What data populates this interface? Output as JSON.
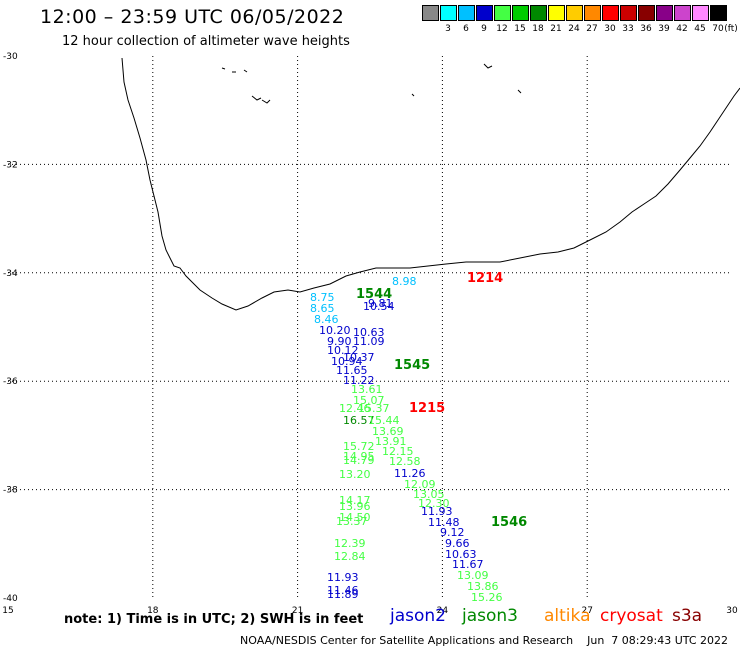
{
  "header": {
    "title": "12:00 – 23:59 UTC 06/05/2022",
    "subtitle": "12 hour collection of altimeter wave heights"
  },
  "color_scale": {
    "unit": "(ft)",
    "bins": [
      {
        "label": "",
        "color": "#888888"
      },
      {
        "label": "3",
        "color": "#00ffff"
      },
      {
        "label": "6",
        "color": "#00c0ff"
      },
      {
        "label": "9",
        "color": "#0000cc"
      },
      {
        "label": "12",
        "color": "#44ff44"
      },
      {
        "label": "15",
        "color": "#00cc00"
      },
      {
        "label": "18",
        "color": "#008800"
      },
      {
        "label": "21",
        "color": "#ffff00"
      },
      {
        "label": "24",
        "color": "#ffcc00"
      },
      {
        "label": "27",
        "color": "#ff8800"
      },
      {
        "label": "30",
        "color": "#ff0000"
      },
      {
        "label": "33",
        "color": "#cc0000"
      },
      {
        "label": "36",
        "color": "#880000"
      },
      {
        "label": "39",
        "color": "#880088"
      },
      {
        "label": "42",
        "color": "#cc44cc"
      },
      {
        "label": "45",
        "color": "#ff88ff"
      },
      {
        "label": "70",
        "color": "#000000"
      }
    ]
  },
  "axes": {
    "lat_ticks": [
      "-30",
      "-32",
      "-34",
      "-36",
      "-38",
      "-40"
    ],
    "lon_ticks": [
      "15",
      "18",
      "21",
      "24",
      "27",
      "30"
    ],
    "lon_range": [
      15,
      30
    ],
    "lat_range": [
      -40,
      -30
    ]
  },
  "pass_times": [
    {
      "label": "1214",
      "color": "#ff0000",
      "lon": 24.5,
      "lat": -34.1
    },
    {
      "label": "1544",
      "color": "#008800",
      "lon": 22.2,
      "lat": -34.4
    },
    {
      "label": "1545",
      "color": "#008800",
      "lon": 23.0,
      "lat": -35.7
    },
    {
      "label": "1215",
      "color": "#ff0000",
      "lon": 23.3,
      "lat": -36.5
    },
    {
      "label": "1546",
      "color": "#008800",
      "lon": 25.0,
      "lat": -38.6
    }
  ],
  "observations": [
    {
      "v": "8.98",
      "c": "#00c0ff",
      "lon": 22.95,
      "lat": -34.15
    },
    {
      "v": "8.75",
      "c": "#00c0ff",
      "lon": 21.25,
      "lat": -34.45
    },
    {
      "v": "8.65",
      "c": "#00c0ff",
      "lon": 21.25,
      "lat": -34.65
    },
    {
      "v": "8.46",
      "c": "#00c0ff",
      "lon": 21.35,
      "lat": -34.85
    },
    {
      "v": "9.81",
      "c": "#0000cc",
      "lon": 22.45,
      "lat": -34.55
    },
    {
      "v": "10.54",
      "c": "#0000cc",
      "lon": 22.35,
      "lat": -34.62
    },
    {
      "v": "10.20",
      "c": "#0000cc",
      "lon": 21.45,
      "lat": -35.05
    },
    {
      "v": "10.63",
      "c": "#0000cc",
      "lon": 22.15,
      "lat": -35.1
    },
    {
      "v": "11.09",
      "c": "#0000cc",
      "lon": 22.15,
      "lat": -35.25
    },
    {
      "v": "9.90",
      "c": "#0000cc",
      "lon": 21.6,
      "lat": -35.25
    },
    {
      "v": "10.12",
      "c": "#0000cc",
      "lon": 21.6,
      "lat": -35.42
    },
    {
      "v": "10.37",
      "c": "#0000cc",
      "lon": 21.95,
      "lat": -35.55
    },
    {
      "v": "10.94",
      "c": "#0000cc",
      "lon": 21.7,
      "lat": -35.62
    },
    {
      "v": "11.65",
      "c": "#0000cc",
      "lon": 21.8,
      "lat": -35.8
    },
    {
      "v": "11.22",
      "c": "#0000cc",
      "lon": 21.95,
      "lat": -35.98
    },
    {
      "v": "13.61",
      "c": "#44ff44",
      "lon": 22.1,
      "lat": -36.15
    },
    {
      "v": "15.07",
      "c": "#44ff44",
      "lon": 22.15,
      "lat": -36.35
    },
    {
      "v": "12.46",
      "c": "#44ff44",
      "lon": 21.85,
      "lat": -36.5
    },
    {
      "v": "15.37",
      "c": "#44ff44",
      "lon": 22.25,
      "lat": -36.5
    },
    {
      "v": "16.57",
      "c": "#008800",
      "lon": 21.95,
      "lat": -36.72
    },
    {
      "v": "15.44",
      "c": "#44ff44",
      "lon": 22.45,
      "lat": -36.72
    },
    {
      "v": "13.69",
      "c": "#44ff44",
      "lon": 22.55,
      "lat": -36.92
    },
    {
      "v": "13.91",
      "c": "#44ff44",
      "lon": 22.6,
      "lat": -37.1
    },
    {
      "v": "15.72",
      "c": "#44ff44",
      "lon": 21.95,
      "lat": -37.2
    },
    {
      "v": "12.15",
      "c": "#44ff44",
      "lon": 22.75,
      "lat": -37.28
    },
    {
      "v": "14.95",
      "c": "#44ff44",
      "lon": 21.95,
      "lat": -37.38
    },
    {
      "v": "14.79",
      "c": "#44ff44",
      "lon": 21.95,
      "lat": -37.45
    },
    {
      "v": "12.58",
      "c": "#44ff44",
      "lon": 22.9,
      "lat": -37.48
    },
    {
      "v": "11.26",
      "c": "#0000cc",
      "lon": 23.0,
      "lat": -37.7
    },
    {
      "v": "13.20",
      "c": "#44ff44",
      "lon": 21.85,
      "lat": -37.72
    },
    {
      "v": "12.09",
      "c": "#44ff44",
      "lon": 23.2,
      "lat": -37.9
    },
    {
      "v": "13.05",
      "c": "#44ff44",
      "lon": 23.4,
      "lat": -38.08
    },
    {
      "v": "14.17",
      "c": "#44ff44",
      "lon": 21.85,
      "lat": -38.2
    },
    {
      "v": "12.30",
      "c": "#44ff44",
      "lon": 23.5,
      "lat": -38.25
    },
    {
      "v": "13.96",
      "c": "#44ff44",
      "lon": 21.85,
      "lat": -38.3
    },
    {
      "v": "11.93",
      "c": "#0000cc",
      "lon": 23.55,
      "lat": -38.4
    },
    {
      "v": "14.50",
      "c": "#44ff44",
      "lon": 21.85,
      "lat": -38.5
    },
    {
      "v": "13.37",
      "c": "#44ff44",
      "lon": 21.8,
      "lat": -38.58
    },
    {
      "v": "11.48",
      "c": "#0000cc",
      "lon": 23.7,
      "lat": -38.6
    },
    {
      "v": "9.12",
      "c": "#0000cc",
      "lon": 23.95,
      "lat": -38.78
    },
    {
      "v": "12.39",
      "c": "#44ff44",
      "lon": 21.75,
      "lat": -38.98
    },
    {
      "v": "9.66",
      "c": "#0000cc",
      "lon": 24.05,
      "lat": -38.98
    },
    {
      "v": "10.63",
      "c": "#0000cc",
      "lon": 24.05,
      "lat": -39.18
    },
    {
      "v": "12.84",
      "c": "#44ff44",
      "lon": 21.75,
      "lat": -39.22
    },
    {
      "v": "11.67",
      "c": "#0000cc",
      "lon": 24.2,
      "lat": -39.38
    },
    {
      "v": "13.09",
      "c": "#44ff44",
      "lon": 24.3,
      "lat": -39.58
    },
    {
      "v": "11.93",
      "c": "#0000cc",
      "lon": 21.6,
      "lat": -39.62
    },
    {
      "v": "13.86",
      "c": "#44ff44",
      "lon": 24.5,
      "lat": -39.78
    },
    {
      "v": "11.46",
      "c": "#0000cc",
      "lon": 21.6,
      "lat": -39.85
    },
    {
      "v": "11.89",
      "c": "#0000cc",
      "lon": 21.6,
      "lat": -39.92
    },
    {
      "v": "15.26",
      "c": "#44ff44",
      "lon": 24.6,
      "lat": -39.98
    }
  ],
  "footer": {
    "note": "note: 1) Time is in UTC; 2) SWH is in feet",
    "satellites": [
      {
        "name": "jason2",
        "color": "#0000cc"
      },
      {
        "name": "jason3",
        "color": "#008800"
      },
      {
        "name": "altika",
        "color": "#ff8800"
      },
      {
        "name": "cryosat",
        "color": "#ff0000"
      },
      {
        "name": "s3a",
        "color": "#880000"
      }
    ],
    "credit": "NOAA/NESDIS Center for Satellite Applications and Research    Jun  7 08:29:43 UTC 2022"
  }
}
